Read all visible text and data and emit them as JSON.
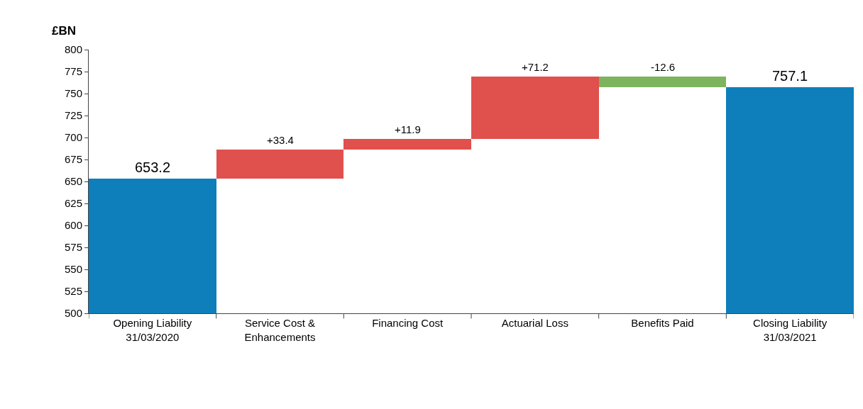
{
  "chart_data": {
    "type": "bar",
    "ylabel": "£BN",
    "categories": [
      "Opening Liability 31/03/2020",
      "Service Cost & Enhancements",
      "Financing Cost",
      "Actuarial Loss",
      "Benefits Paid",
      "Closing Liability 31/03/2021"
    ],
    "values": [
      653.2,
      33.4,
      11.9,
      71.2,
      -12.6,
      757.1
    ],
    "base": [
      null,
      653.2,
      686.6,
      698.5,
      769.7,
      null
    ],
    "colors": [
      "#0e7fba",
      "#e0504d",
      "#e0504d",
      "#e0504d",
      "#7db45d",
      "#0e7fba"
    ],
    "value_labels": [
      "653.2",
      "+33.4",
      "+11.9",
      "+71.2",
      "-12.6",
      "757.1"
    ],
    "ylim": [
      500,
      800
    ],
    "yticks": [
      500,
      525,
      550,
      575,
      600,
      625,
      650,
      675,
      700,
      725,
      750,
      775,
      800
    ],
    "grid": false
  }
}
